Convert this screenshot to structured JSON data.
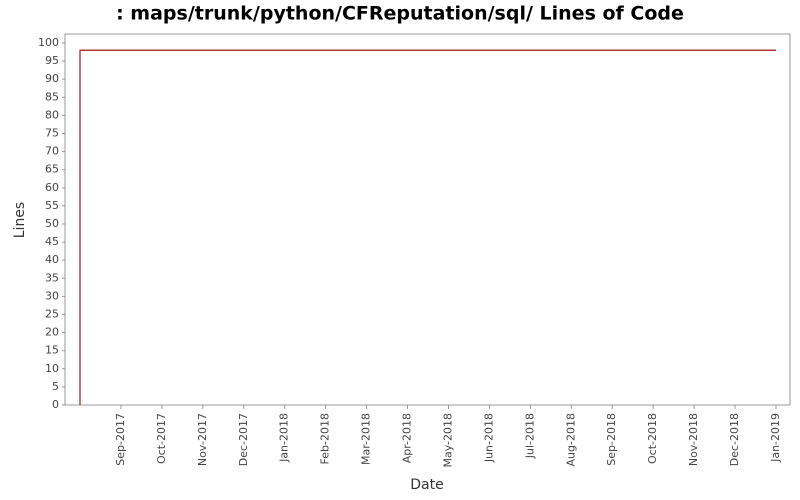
{
  "chart_data": {
    "type": "line",
    "title": ": maps/trunk/python/CFReputation/sql/ Lines of Code",
    "x_label": "Date",
    "y_label": "Lines",
    "series": [
      {
        "name": "Lines",
        "color": "#aa1111",
        "x": [
          "2017-08",
          "2017-08",
          "2019-01"
        ],
        "values": [
          0,
          98,
          98
        ]
      }
    ],
    "xlim": [
      "2017-08",
      "2019-01"
    ],
    "xticks": [
      {
        "value": "2017-09",
        "label": "Sep-2017"
      },
      {
        "value": "2017-10",
        "label": "Oct-2017"
      },
      {
        "value": "2017-11",
        "label": "Nov-2017"
      },
      {
        "value": "2017-12",
        "label": "Dec-2017"
      },
      {
        "value": "2018-01",
        "label": "Jan-2018"
      },
      {
        "value": "2018-02",
        "label": "Feb-2018"
      },
      {
        "value": "2018-03",
        "label": "Mar-2018"
      },
      {
        "value": "2018-04",
        "label": "Apr-2018"
      },
      {
        "value": "2018-05",
        "label": "May-2018"
      },
      {
        "value": "2018-06",
        "label": "Jun-2018"
      },
      {
        "value": "2018-07",
        "label": "Jul-2018"
      },
      {
        "value": "2018-08",
        "label": "Aug-2018"
      },
      {
        "value": "2018-09",
        "label": "Sep-2018"
      },
      {
        "value": "2018-10",
        "label": "Oct-2018"
      },
      {
        "value": "2018-11",
        "label": "Nov-2018"
      },
      {
        "value": "2018-12",
        "label": "Dec-2018"
      },
      {
        "value": "2019-01",
        "label": "Jan-2019"
      }
    ],
    "ylim": [
      0,
      100
    ],
    "yticks": [
      0,
      5,
      10,
      15,
      20,
      25,
      30,
      35,
      40,
      45,
      50,
      55,
      60,
      65,
      70,
      75,
      80,
      85,
      90,
      95,
      100
    ],
    "grid": false
  }
}
